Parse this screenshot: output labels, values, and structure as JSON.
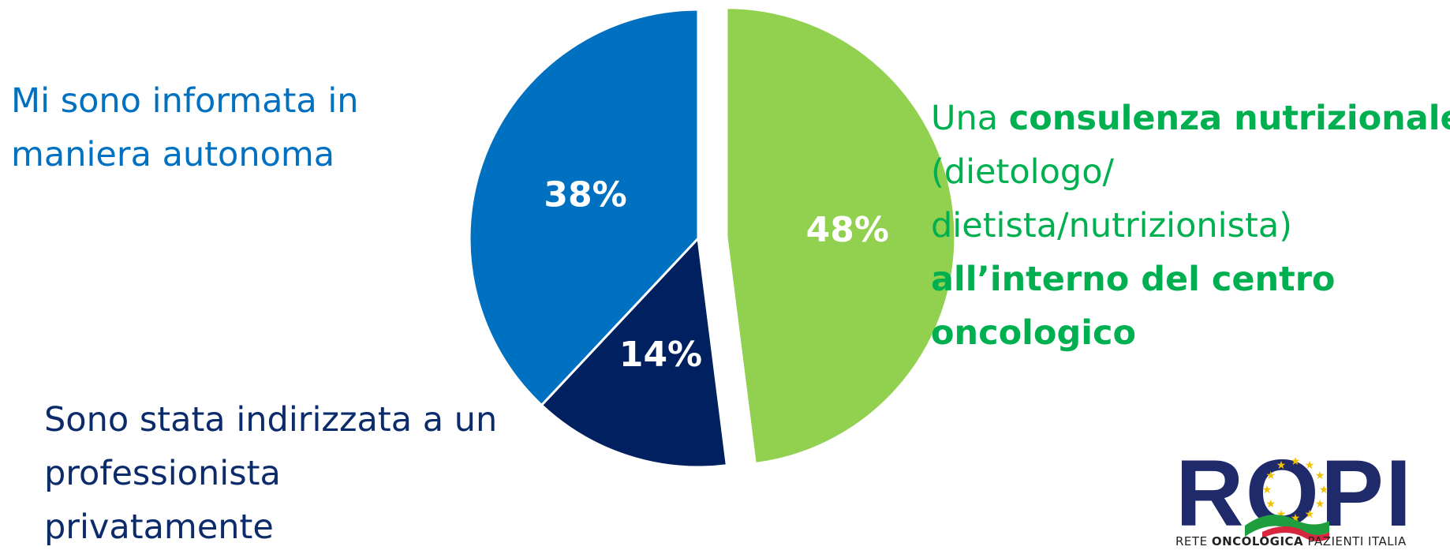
{
  "chart_data": {
    "type": "pie",
    "slices": [
      {
        "label": "Una consulenza nutrizionale (dietologo/ dietista/nutrizionista) all’interno del centro oncologico",
        "value": 48,
        "display": "48%",
        "color": "#92d050",
        "exploded": true
      },
      {
        "label": "Sono stata indirizzata a un professionista privatamente",
        "value": 14,
        "display": "14%",
        "color": "#002060"
      },
      {
        "label": "Mi sono informata in maniera autonoma",
        "value": 38,
        "display": "38%",
        "color": "#0070c0"
      }
    ]
  },
  "labels": {
    "autonomous": {
      "line1": "Mi sono informata in",
      "line2": "maniera autonoma"
    },
    "private": {
      "line1": "Sono stata indirizzata a un",
      "line2": "professionista",
      "line3": "privatamente"
    },
    "nutrition": {
      "line1_normal": "Una ",
      "line1_bold": "consulenza nutrizionale",
      "line2": "(dietologo/",
      "line3": "dietista/nutrizionista)",
      "line4": "all’interno del centro",
      "line5": "oncologico"
    }
  },
  "logo": {
    "letters": "ROPI",
    "tagline_start": "RETE ",
    "tagline_bold": "ONCOLOGICA",
    "tagline_end": " PAZIENTI ITALIA",
    "colors": {
      "navy": "#1f2a6b",
      "star": "#f2c200",
      "green": "#1e9e3e",
      "red": "#d7263d"
    }
  }
}
